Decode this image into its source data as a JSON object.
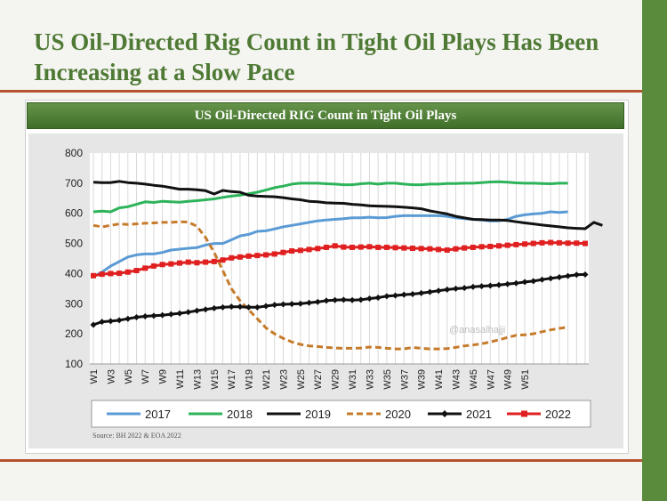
{
  "slide": {
    "title": "US Oil-Directed Rig Count in Tight Oil Plays Has Been Increasing at a Slow Pace",
    "source": "Source: BH 2022 & EOA 2022",
    "colors": {
      "title": "#4f7a35",
      "accent_bar": "#5a8a3c",
      "rule": "#b5532e"
    }
  },
  "chart_data": {
    "type": "line",
    "title": "US Oil-Directed RIG Count in Tight Oil Plays",
    "xlabel": "",
    "ylabel": "",
    "ylim": [
      100,
      800
    ],
    "yticks": [
      100,
      200,
      300,
      400,
      500,
      600,
      700,
      800
    ],
    "x_tick_labels": [
      "W1",
      "W3",
      "W5",
      "W7",
      "W9",
      "W11",
      "W13",
      "W15",
      "W17",
      "W19",
      "W21",
      "W23",
      "W25",
      "W27",
      "W29",
      "W31",
      "W33",
      "W35",
      "W37",
      "W39",
      "W41",
      "W43",
      "W45",
      "W47",
      "W49",
      "W51"
    ],
    "watermark": "@anasalhajji",
    "grid": "vertical",
    "legend_position": "bottom",
    "series": [
      {
        "name": "2017",
        "color": "#5b9bd5",
        "dash": "solid",
        "marker": "none",
        "values": [
          390,
          405,
          425,
          440,
          455,
          462,
          465,
          465,
          470,
          478,
          481,
          484,
          486,
          495,
          500,
          500,
          512,
          525,
          530,
          540,
          542,
          548,
          555,
          560,
          565,
          570,
          575,
          578,
          580,
          582,
          585,
          585,
          587,
          585,
          586,
          590,
          592,
          592,
          592,
          592,
          592,
          590,
          585,
          582,
          580,
          578,
          575,
          575,
          580,
          590,
          595,
          598,
          600,
          605,
          603,
          605
        ]
      },
      {
        "name": "2018",
        "color": "#2db35a",
        "dash": "solid",
        "marker": "none",
        "values": [
          605,
          607,
          605,
          618,
          622,
          630,
          638,
          636,
          640,
          638,
          637,
          640,
          642,
          645,
          648,
          653,
          657,
          660,
          665,
          670,
          677,
          685,
          690,
          697,
          700,
          700,
          700,
          698,
          697,
          695,
          695,
          698,
          700,
          697,
          700,
          700,
          697,
          695,
          695,
          697,
          697,
          699,
          699,
          700,
          700,
          702,
          704,
          705,
          703,
          701,
          700,
          700,
          699,
          698,
          700,
          700
        ]
      },
      {
        "name": "2019",
        "color": "#111111",
        "dash": "solid",
        "marker": "none",
        "values": [
          703,
          702,
          702,
          706,
          702,
          700,
          697,
          693,
          690,
          685,
          680,
          680,
          678,
          675,
          664,
          676,
          672,
          670,
          660,
          657,
          656,
          655,
          652,
          648,
          645,
          640,
          638,
          635,
          634,
          633,
          630,
          628,
          625,
          624,
          623,
          622,
          620,
          618,
          615,
          608,
          603,
          598,
          590,
          585,
          580,
          579,
          578,
          578,
          576,
          572,
          568,
          565,
          561,
          558,
          555,
          552,
          550,
          549,
          570,
          560
        ]
      },
      {
        "name": "2020",
        "color": "#c67b2b",
        "dash": "dashed",
        "marker": "none",
        "values": [
          560,
          555,
          560,
          565,
          563,
          565,
          567,
          568,
          570,
          570,
          572,
          571,
          557,
          520,
          470,
          410,
          350,
          310,
          280,
          250,
          220,
          200,
          185,
          173,
          165,
          160,
          158,
          155,
          153,
          152,
          152,
          153,
          156,
          155,
          152,
          150,
          150,
          155,
          152,
          150,
          150,
          151,
          155,
          160,
          163,
          167,
          173,
          180,
          188,
          195,
          197,
          200,
          207,
          213,
          218,
          222
        ]
      },
      {
        "name": "2021",
        "color": "#111111",
        "dash": "solid",
        "marker": "diamond",
        "values": [
          230,
          240,
          242,
          245,
          250,
          255,
          258,
          260,
          262,
          265,
          268,
          272,
          277,
          281,
          285,
          288,
          290,
          290,
          288,
          288,
          292,
          296,
          298,
          299,
          300,
          303,
          306,
          310,
          312,
          313,
          312,
          313,
          317,
          320,
          325,
          327,
          330,
          332,
          335,
          339,
          343,
          347,
          350,
          352,
          356,
          358,
          360,
          362,
          365,
          368,
          372,
          375,
          380,
          384,
          388,
          392,
          396,
          397
        ]
      },
      {
        "name": "2022",
        "color": "#e02020",
        "dash": "solid",
        "marker": "square",
        "values": [
          393,
          398,
          400,
          401,
          405,
          410,
          418,
          425,
          430,
          432,
          435,
          438,
          436,
          438,
          440,
          445,
          452,
          455,
          458,
          460,
          462,
          465,
          470,
          475,
          477,
          480,
          483,
          487,
          492,
          488,
          487,
          488,
          489,
          487,
          487,
          486,
          485,
          484,
          483,
          482,
          480,
          478,
          482,
          485,
          487,
          489,
          490,
          492,
          494,
          496,
          498,
          500,
          502,
          503,
          502,
          501,
          501,
          500
        ]
      }
    ]
  }
}
